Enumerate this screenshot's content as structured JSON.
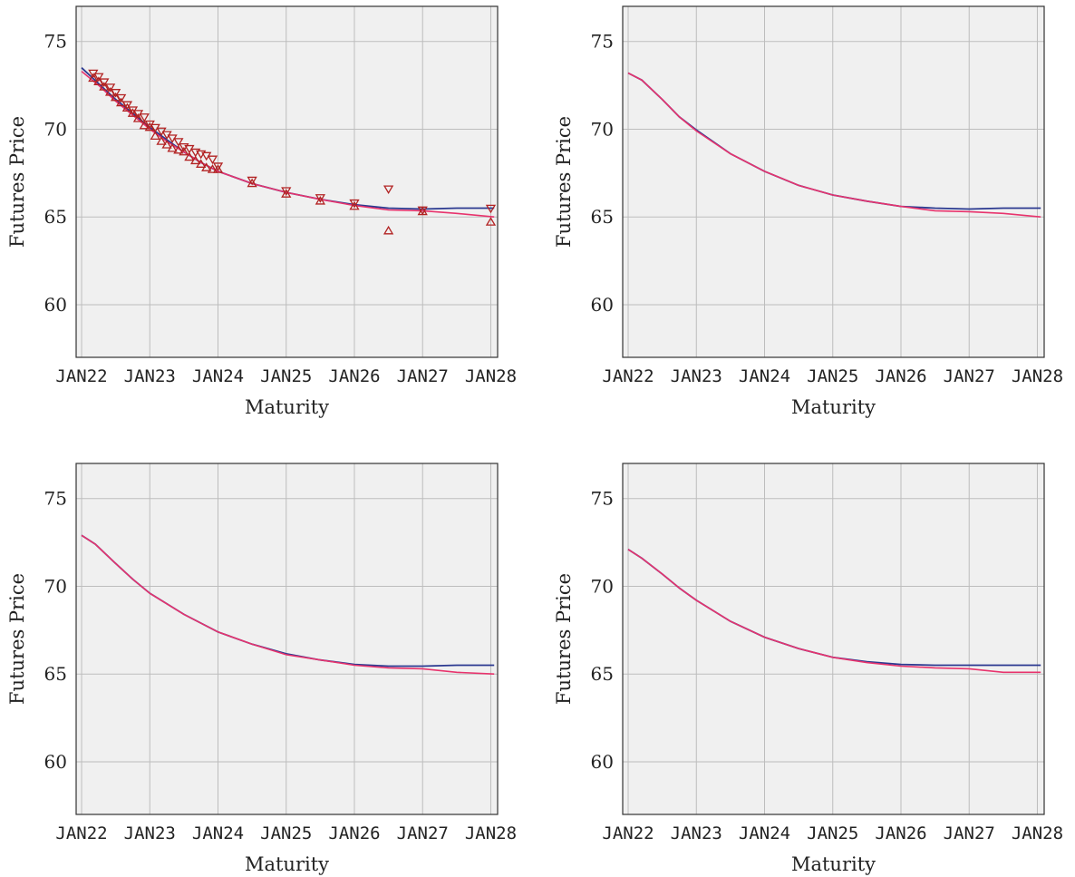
{
  "colors": {
    "background": "#f0f0f0",
    "grid": "#bdbdbd",
    "model_line": "#2b3990",
    "fitted_line": "#e8336d",
    "markers": "#b22222"
  },
  "chart_data": [
    {
      "type": "line",
      "xlabel": "Maturity",
      "ylabel": "Futures Price",
      "x_ticks": [
        "JAN22",
        "JAN23",
        "JAN24",
        "JAN25",
        "JAN26",
        "JAN27",
        "JAN28"
      ],
      "y_ticks": [
        60,
        65,
        70,
        75
      ],
      "xlim": [
        2021.92,
        2028.1
      ],
      "ylim": [
        57,
        77
      ],
      "grid": true,
      "legend": "none",
      "series": [
        {
          "color": "#2b3990",
          "x": [
            2022.0,
            2022.25,
            2022.5,
            2022.75,
            2023.0,
            2023.25,
            2023.5,
            2023.75,
            2024.0,
            2024.5,
            2025.0,
            2025.5,
            2026.0,
            2026.5,
            2027.0,
            2027.5,
            2028.05
          ],
          "y": [
            73.5,
            72.6,
            71.7,
            70.9,
            70.1,
            69.4,
            68.7,
            68.1,
            67.6,
            66.9,
            66.4,
            66.0,
            65.7,
            65.5,
            65.45,
            65.5,
            65.5
          ]
        },
        {
          "color": "#e8336d",
          "x": [
            2022.0,
            2022.25,
            2022.5,
            2022.75,
            2023.0,
            2023.25,
            2023.5,
            2023.75,
            2024.0,
            2024.5,
            2025.0,
            2025.5,
            2026.0,
            2026.5,
            2027.0,
            2027.5,
            2028.05
          ],
          "y": [
            73.3,
            72.5,
            71.6,
            70.8,
            70.0,
            69.3,
            68.7,
            68.1,
            67.6,
            66.9,
            66.4,
            66.0,
            65.65,
            65.4,
            65.35,
            65.2,
            65.0
          ]
        }
      ],
      "markers_down": {
        "color": "#b22222",
        "x": [
          2022.17,
          2022.25,
          2022.33,
          2022.42,
          2022.5,
          2022.58,
          2022.67,
          2022.75,
          2022.83,
          2022.92,
          2023.0,
          2023.08,
          2023.17,
          2023.25,
          2023.33,
          2023.42,
          2023.5,
          2023.58,
          2023.67,
          2023.75,
          2023.83,
          2023.92,
          2024.0,
          2024.5,
          2025.0,
          2025.5,
          2026.0,
          2026.5,
          2027.0,
          2028.0
        ],
        "y": [
          73.2,
          73.0,
          72.7,
          72.4,
          72.1,
          71.8,
          71.4,
          71.1,
          70.9,
          70.7,
          70.3,
          70.1,
          69.9,
          69.7,
          69.5,
          69.3,
          69.0,
          68.9,
          68.7,
          68.6,
          68.5,
          68.3,
          67.9,
          67.1,
          66.5,
          66.1,
          65.8,
          66.6,
          65.4,
          65.5
        ]
      },
      "markers_up": {
        "color": "#b22222",
        "x": [
          2022.17,
          2022.25,
          2022.33,
          2022.42,
          2022.5,
          2022.58,
          2022.67,
          2022.75,
          2022.83,
          2022.92,
          2023.0,
          2023.08,
          2023.17,
          2023.25,
          2023.33,
          2023.42,
          2023.5,
          2023.58,
          2023.67,
          2023.75,
          2023.83,
          2023.92,
          2024.0,
          2024.5,
          2025.0,
          2025.5,
          2026.0,
          2026.5,
          2027.0,
          2028.0
        ],
        "y": [
          72.9,
          72.7,
          72.4,
          72.1,
          71.8,
          71.5,
          71.2,
          70.9,
          70.6,
          70.2,
          70.1,
          69.6,
          69.3,
          69.1,
          68.9,
          68.8,
          68.7,
          68.4,
          68.2,
          68.0,
          67.8,
          67.7,
          67.7,
          66.9,
          66.3,
          65.9,
          65.6,
          64.2,
          65.3,
          64.7
        ]
      }
    },
    {
      "type": "line",
      "xlabel": "Maturity",
      "ylabel": "Futures Price",
      "x_ticks": [
        "JAN22",
        "JAN23",
        "JAN24",
        "JAN25",
        "JAN26",
        "JAN27",
        "JAN28"
      ],
      "y_ticks": [
        60,
        65,
        70,
        75
      ],
      "xlim": [
        2021.92,
        2028.1
      ],
      "ylim": [
        57,
        77
      ],
      "grid": true,
      "legend": "none",
      "series": [
        {
          "color": "#2b3990",
          "x": [
            2022.0,
            2022.2,
            2022.5,
            2022.75,
            2023.0,
            2023.5,
            2024.0,
            2024.5,
            2025.0,
            2025.5,
            2026.0,
            2026.5,
            2027.0,
            2027.5,
            2028.05
          ],
          "y": [
            73.2,
            72.8,
            71.7,
            70.7,
            69.95,
            68.6,
            67.6,
            66.8,
            66.25,
            65.9,
            65.6,
            65.5,
            65.45,
            65.5,
            65.5
          ]
        },
        {
          "color": "#e8336d",
          "x": [
            2022.0,
            2022.2,
            2022.5,
            2022.75,
            2023.0,
            2023.5,
            2024.0,
            2024.5,
            2025.0,
            2025.5,
            2026.0,
            2026.5,
            2027.0,
            2027.5,
            2028.05
          ],
          "y": [
            73.2,
            72.8,
            71.7,
            70.7,
            69.9,
            68.6,
            67.6,
            66.8,
            66.25,
            65.9,
            65.6,
            65.35,
            65.3,
            65.2,
            65.0
          ]
        }
      ]
    },
    {
      "type": "line",
      "xlabel": "Maturity",
      "ylabel": "Futures Price",
      "x_ticks": [
        "JAN22",
        "JAN23",
        "JAN24",
        "JAN25",
        "JAN26",
        "JAN27",
        "JAN28"
      ],
      "y_ticks": [
        60,
        65,
        70,
        75
      ],
      "xlim": [
        2021.92,
        2028.1
      ],
      "ylim": [
        57,
        77
      ],
      "grid": true,
      "legend": "none",
      "series": [
        {
          "color": "#2b3990",
          "x": [
            2022.0,
            2022.2,
            2022.5,
            2022.75,
            2023.0,
            2023.5,
            2024.0,
            2024.5,
            2025.0,
            2025.5,
            2026.0,
            2026.5,
            2027.0,
            2027.5,
            2028.05
          ],
          "y": [
            72.9,
            72.4,
            71.3,
            70.4,
            69.6,
            68.4,
            67.4,
            66.7,
            66.15,
            65.8,
            65.55,
            65.45,
            65.45,
            65.5,
            65.5
          ]
        },
        {
          "color": "#e8336d",
          "x": [
            2022.0,
            2022.2,
            2022.5,
            2022.75,
            2023.0,
            2023.5,
            2024.0,
            2024.5,
            2025.0,
            2025.5,
            2026.0,
            2026.5,
            2027.0,
            2027.5,
            2028.05
          ],
          "y": [
            72.9,
            72.4,
            71.3,
            70.4,
            69.6,
            68.4,
            67.4,
            66.7,
            66.1,
            65.8,
            65.5,
            65.35,
            65.3,
            65.1,
            65.0
          ]
        }
      ]
    },
    {
      "type": "line",
      "xlabel": "Maturity",
      "ylabel": "Futures Price",
      "x_ticks": [
        "JAN22",
        "JAN23",
        "JAN24",
        "JAN25",
        "JAN26",
        "JAN27",
        "JAN28"
      ],
      "y_ticks": [
        60,
        65,
        70,
        75
      ],
      "xlim": [
        2021.92,
        2028.1
      ],
      "ylim": [
        57,
        77
      ],
      "grid": true,
      "legend": "none",
      "series": [
        {
          "color": "#2b3990",
          "x": [
            2022.0,
            2022.2,
            2022.5,
            2022.75,
            2023.0,
            2023.5,
            2024.0,
            2024.5,
            2025.0,
            2025.5,
            2026.0,
            2026.5,
            2027.0,
            2027.5,
            2028.05
          ],
          "y": [
            72.1,
            71.6,
            70.7,
            69.9,
            69.2,
            68.0,
            67.1,
            66.45,
            65.95,
            65.7,
            65.55,
            65.5,
            65.5,
            65.5,
            65.5
          ]
        },
        {
          "color": "#e8336d",
          "x": [
            2022.0,
            2022.2,
            2022.5,
            2022.75,
            2023.0,
            2023.5,
            2024.0,
            2024.5,
            2025.0,
            2025.5,
            2026.0,
            2026.5,
            2027.0,
            2027.5,
            2028.05
          ],
          "y": [
            72.1,
            71.6,
            70.7,
            69.9,
            69.2,
            68.0,
            67.1,
            66.45,
            65.95,
            65.65,
            65.45,
            65.35,
            65.3,
            65.1,
            65.1
          ]
        }
      ]
    }
  ]
}
